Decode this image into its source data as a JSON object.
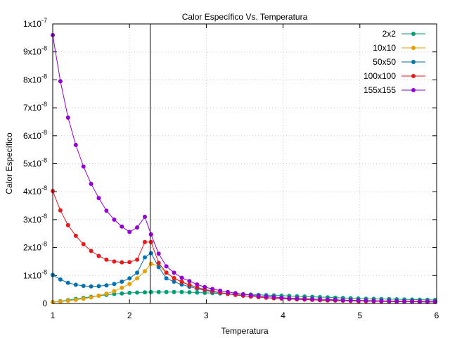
{
  "chart_data": {
    "type": "line",
    "title": "Calor Específico Vs. Temperatura",
    "xlabel": "Temperatura",
    "ylabel": "Calor Específico",
    "xlim": [
      1,
      6
    ],
    "ylim": [
      0,
      1e-07
    ],
    "grid": true,
    "legend_position": "top-right",
    "x_ticks": [
      {
        "value": 1,
        "label": "1"
      },
      {
        "value": 2,
        "label": "2"
      },
      {
        "value": 3,
        "label": "3"
      },
      {
        "value": 4,
        "label": "4"
      },
      {
        "value": 5,
        "label": "5"
      },
      {
        "value": 6,
        "label": "6"
      }
    ],
    "y_ticks": [
      {
        "value": 0,
        "base": "0",
        "exp": ""
      },
      {
        "value": 1e-08,
        "base": "1x10",
        "exp": "-8"
      },
      {
        "value": 2e-08,
        "base": "2x10",
        "exp": "-8"
      },
      {
        "value": 3e-08,
        "base": "3x10",
        "exp": "-8"
      },
      {
        "value": 4e-08,
        "base": "4x10",
        "exp": "-8"
      },
      {
        "value": 5e-08,
        "base": "5x10",
        "exp": "-8"
      },
      {
        "value": 6e-08,
        "base": "6x10",
        "exp": "-8"
      },
      {
        "value": 7e-08,
        "base": "7x10",
        "exp": "-8"
      },
      {
        "value": 8e-08,
        "base": "8x10",
        "exp": "-8"
      },
      {
        "value": 9e-08,
        "base": "9x10",
        "exp": "-8"
      },
      {
        "value": 1e-07,
        "base": "1x10",
        "exp": "-7"
      }
    ],
    "vertical_line_x": 2.269,
    "x": [
      1.0,
      1.1,
      1.2,
      1.3,
      1.4,
      1.5,
      1.6,
      1.7,
      1.8,
      1.9,
      2.0,
      2.1,
      2.2,
      2.28,
      2.38,
      2.48,
      2.58,
      2.68,
      2.78,
      2.88,
      2.98,
      3.08,
      3.18,
      3.28,
      3.38,
      3.48,
      3.58,
      3.68,
      3.78,
      3.88,
      3.98,
      4.08,
      4.18,
      4.28,
      4.38,
      4.48,
      4.58,
      4.68,
      4.78,
      4.88,
      4.98,
      5.08,
      5.18,
      5.28,
      5.38,
      5.48,
      5.58,
      5.68,
      5.78,
      5.88,
      5.98
    ],
    "series": [
      {
        "name": "2x2",
        "color": "#009e73",
        "values": [
          5e-10,
          8e-10,
          1.2e-09,
          1.6e-09,
          2e-09,
          2.4e-09,
          2.8e-09,
          3.1e-09,
          3.4e-09,
          3.6e-09,
          3.8e-09,
          3.9e-09,
          4e-09,
          4.1e-09,
          4.1e-09,
          4.1e-09,
          4.1e-09,
          4.1e-09,
          4e-09,
          3.9e-09,
          3.8e-09,
          3.7e-09,
          3.6e-09,
          3.5e-09,
          3.4e-09,
          3.3e-09,
          3.2e-09,
          3.1e-09,
          3e-09,
          2.9e-09,
          2.8e-09,
          2.7e-09,
          2.6e-09,
          2.5e-09,
          2.4e-09,
          2.3e-09,
          2.2e-09,
          2.1e-09,
          2e-09,
          1.9e-09,
          1.8e-09,
          1.7e-09,
          1.65e-09,
          1.6e-09,
          1.55e-09,
          1.5e-09,
          1.45e-09,
          1.4e-09,
          1.35e-09,
          1.3e-09,
          1.25e-09
        ]
      },
      {
        "name": "10x10",
        "color": "#e69f00",
        "values": [
          5e-10,
          7e-10,
          1e-09,
          1.3e-09,
          1.7e-09,
          2.2e-09,
          2.8e-09,
          3.5e-09,
          4.4e-09,
          5.6e-09,
          7e-09,
          9e-09,
          1.15e-08,
          1.42e-08,
          1.35e-08,
          1.1e-08,
          9.2e-09,
          7.8e-09,
          6.7e-09,
          5.8e-09,
          5e-09,
          4.4e-09,
          3.9e-09,
          3.5e-09,
          3.1e-09,
          2.8e-09,
          2.5e-09,
          2.3e-09,
          2.1e-09,
          1.9e-09,
          1.8e-09,
          1.6e-09,
          1.5e-09,
          1.4e-09,
          1.3e-09,
          1.2e-09,
          1.1e-09,
          1.05e-09,
          1e-09,
          9.5e-10,
          9e-10,
          8.5e-10,
          8e-10,
          7.6e-10,
          7.2e-10,
          6.8e-10,
          6.5e-10,
          6.2e-10,
          6e-10,
          5.8e-10,
          5.6e-10
        ]
      },
      {
        "name": "50x50",
        "color": "#0072b2",
        "values": [
          1.02e-08,
          8.6e-09,
          7.4e-09,
          6.7e-09,
          6.3e-09,
          6.1e-09,
          6.2e-09,
          6.5e-09,
          7e-09,
          7.8e-09,
          9e-09,
          1.1e-08,
          1.65e-08,
          1.8e-08,
          1.3e-08,
          9e-09,
          7.8e-09,
          6.8e-09,
          6e-09,
          5.3e-09,
          4.7e-09,
          4.2e-09,
          3.8e-09,
          3.4e-09,
          3.1e-09,
          2.8e-09,
          2.5e-09,
          2.3e-09,
          2.1e-09,
          1.9e-09,
          1.8e-09,
          1.6e-09,
          1.5e-09,
          1.4e-09,
          1.3e-09,
          1.2e-09,
          1.1e-09,
          1.05e-09,
          1e-09,
          9.5e-10,
          9e-10,
          8.5e-10,
          8e-10,
          7.6e-10,
          7.2e-10,
          6.8e-10,
          6.5e-10,
          6.2e-10,
          6e-10,
          5.8e-10,
          5.6e-10
        ]
      },
      {
        "name": "100x100",
        "color": "#e41a1c",
        "values": [
          4.02e-08,
          3.33e-08,
          2.8e-08,
          2.42e-08,
          2.12e-08,
          1.88e-08,
          1.7e-08,
          1.57e-08,
          1.5e-08,
          1.47e-08,
          1.48e-08,
          1.57e-08,
          2.2e-08,
          2.2e-08,
          1.45e-08,
          1.1e-08,
          9e-09,
          7.7e-09,
          6.6e-09,
          5.7e-09,
          5e-09,
          4.4e-09,
          3.9e-09,
          3.5e-09,
          3.1e-09,
          2.8e-09,
          2.5e-09,
          2.3e-09,
          2.1e-09,
          1.9e-09,
          1.8e-09,
          1.6e-09,
          1.5e-09,
          1.4e-09,
          1.3e-09,
          1.2e-09,
          1.1e-09,
          1.05e-09,
          1e-09,
          9.5e-10,
          9e-10,
          8.5e-10,
          8e-10,
          7.6e-10,
          7.2e-10,
          6.8e-10,
          6.5e-10,
          6.2e-10,
          6e-10,
          5.8e-10,
          5.6e-10
        ]
      },
      {
        "name": "155x155",
        "color": "#9400d3",
        "values": [
          9.6e-08,
          7.95e-08,
          6.65e-08,
          5.67e-08,
          4.9e-08,
          4.28e-08,
          3.77e-08,
          3.32e-08,
          3e-08,
          2.75e-08,
          2.56e-08,
          2.72e-08,
          3.1e-08,
          2.47e-08,
          1.78e-08,
          1.33e-08,
          1.1e-08,
          9.2e-09,
          8e-09,
          6.8e-09,
          5.9e-09,
          5.2e-09,
          4.6e-09,
          4.1e-09,
          3.7e-09,
          3.3e-09,
          3e-09,
          2.7e-09,
          2.5e-09,
          2.3e-09,
          2.1e-09,
          1.9e-09,
          1.8e-09,
          1.7e-09,
          1.6e-09,
          1.5e-09,
          1.4e-09,
          1.3e-09,
          1.2e-09,
          1.15e-09,
          1.1e-09,
          1.05e-09,
          1e-09,
          9.5e-10,
          9e-10,
          8.6e-10,
          8.2e-10,
          7.8e-10,
          7.5e-10,
          7.2e-10,
          7e-10
        ]
      }
    ]
  }
}
